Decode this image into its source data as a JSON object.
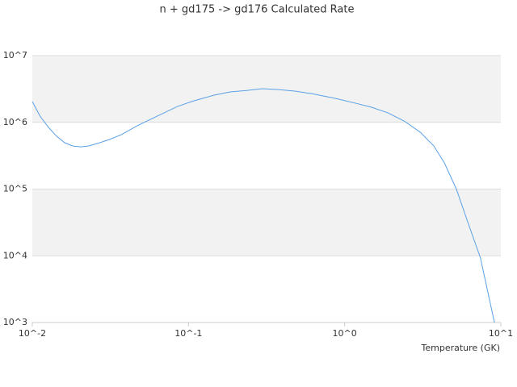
{
  "chart_data": {
    "type": "line",
    "title": "n + gd175 -> gd176 Calculated Rate",
    "x_label": "Temperature (GK)",
    "x": [
      0.01,
      0.0112,
      0.0127,
      0.0143,
      0.0161,
      0.0181,
      0.0204,
      0.023,
      0.0259,
      0.031,
      0.037,
      0.047,
      0.063,
      0.085,
      0.108,
      0.146,
      0.185,
      0.235,
      0.297,
      0.377,
      0.48,
      0.61,
      0.87,
      1.17,
      1.48,
      1.89,
      2.4,
      3.05,
      3.73,
      4.35,
      5.2,
      6.2,
      7.4,
      9.1
    ],
    "series": [
      {
        "color": "#5aa0e6",
        "values": [
          2050000,
          1240000,
          840000,
          620000,
          495000,
          443000,
          430000,
          443000,
          480000,
          550000,
          650000,
          890000,
          1240000,
          1730000,
          2100000,
          2560000,
          2860000,
          3000000,
          3200000,
          3100000,
          2940000,
          2700000,
          2290000,
          1940000,
          1690000,
          1390000,
          1050000,
          710000,
          440000,
          247000,
          99000,
          30000,
          9300,
          1000
        ]
      }
    ],
    "xlog": true,
    "ylog": true,
    "xlim": [
      0.01,
      10
    ],
    "ylim": [
      1000,
      10000000
    ],
    "xticks": [
      {
        "value": 0.01,
        "label": "10^-2"
      },
      {
        "value": 0.1,
        "label": "10^-1"
      },
      {
        "value": 1,
        "label": "10^0"
      },
      {
        "value": 10,
        "label": "10^1"
      }
    ],
    "yticks": [
      {
        "value": 1000,
        "label": "10^3"
      },
      {
        "value": 10000,
        "label": "10^4"
      },
      {
        "value": 100000,
        "label": "10^5"
      },
      {
        "value": 1000000,
        "label": "10^6"
      },
      {
        "value": 10000000,
        "label": "10^7"
      }
    ],
    "grid": true,
    "band_color": "#f2f2f2"
  }
}
